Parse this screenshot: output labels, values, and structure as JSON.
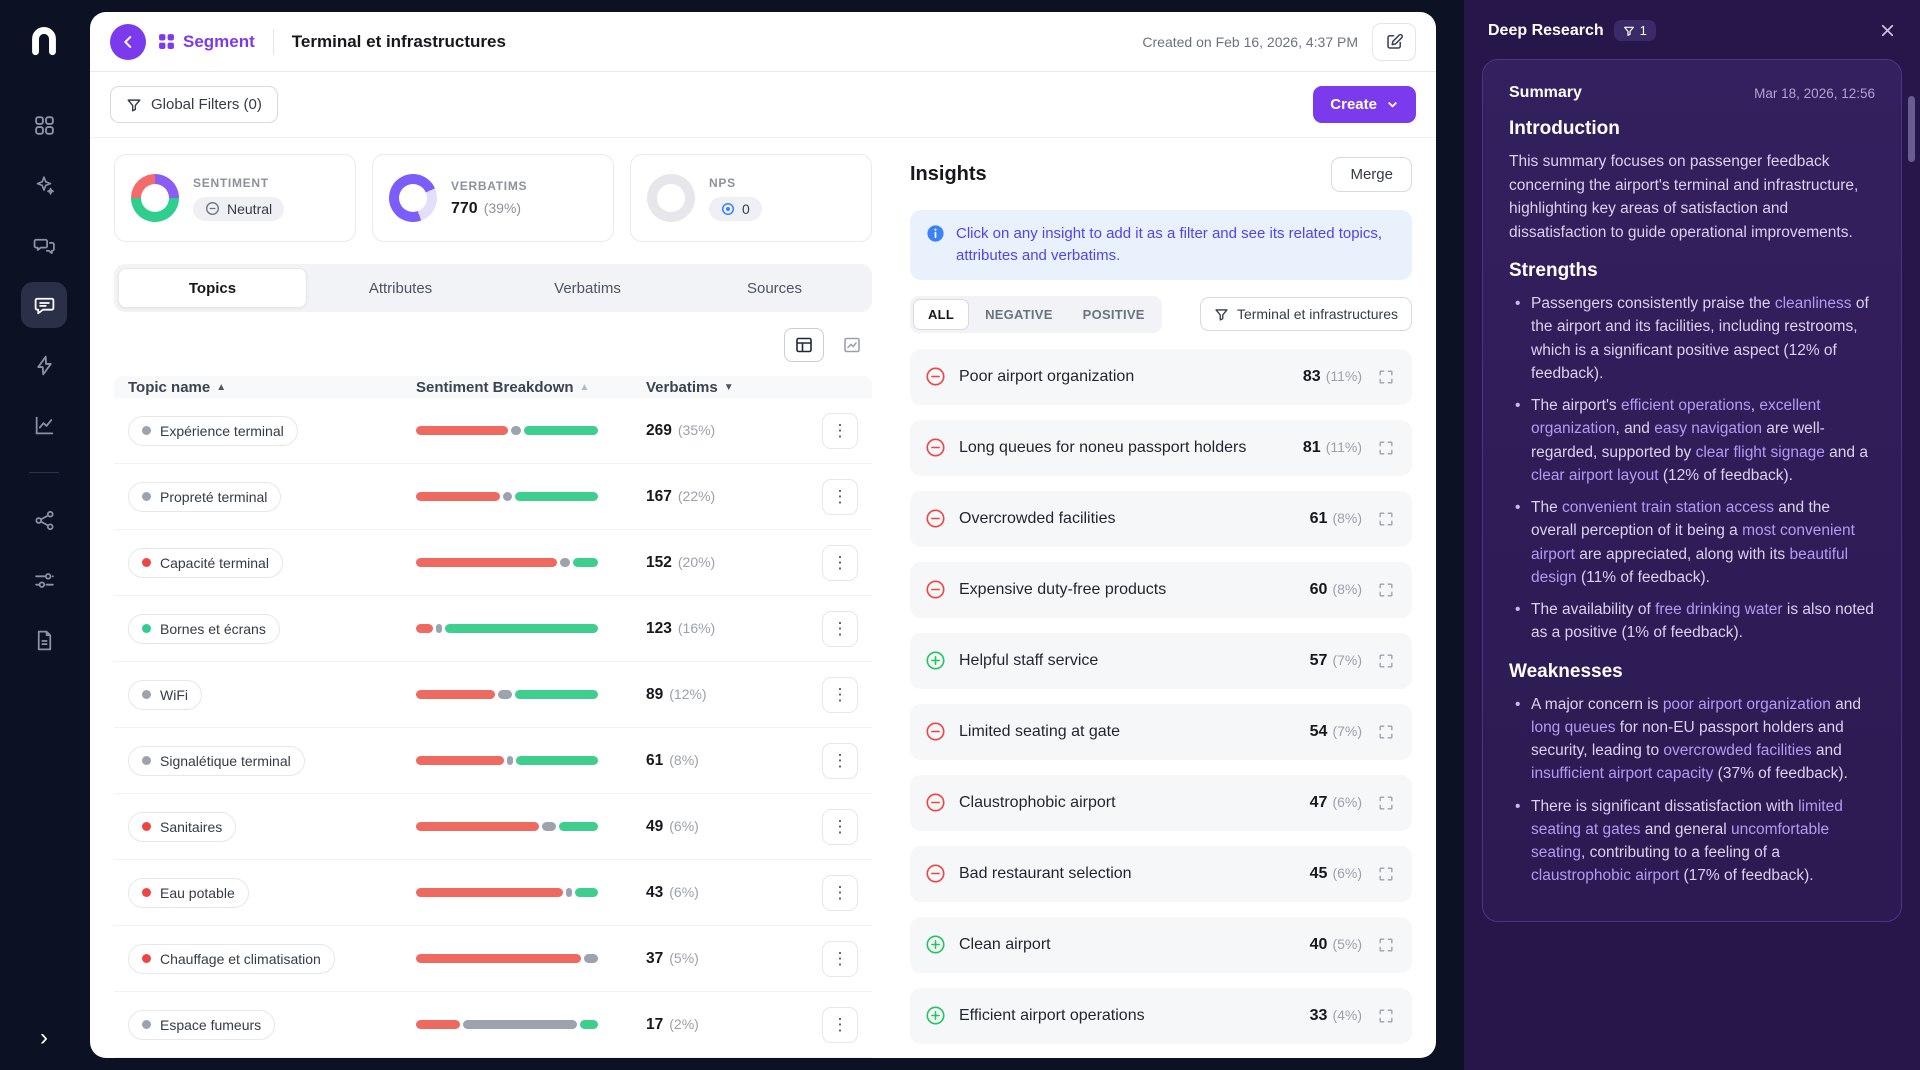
{
  "colors": {
    "accent": "#7c3aed",
    "negative": "#ee6a60",
    "neutral": "#9ca3af",
    "positive": "#3ecf8e",
    "insight_negative": "#ef4444",
    "insight_positive": "#22c55e",
    "highlight": "#b29bf4"
  },
  "header": {
    "segment_label": "Segment",
    "title": "Terminal et infrastructures",
    "created": "Created on Feb 16, 2026, 4:37 PM"
  },
  "toolbar": {
    "global_filters_label": "Global Filters (0)",
    "create_label": "Create"
  },
  "stats": {
    "sentiment": {
      "label": "SENTIMENT",
      "badge": "Neutral"
    },
    "verbatims": {
      "label": "VERBATIMS",
      "value": "770",
      "pct": "(39%)"
    },
    "nps": {
      "label": "NPS",
      "badge": "0"
    }
  },
  "tabs": [
    {
      "label": "Topics",
      "active": true
    },
    {
      "label": "Attributes",
      "active": false
    },
    {
      "label": "Verbatims",
      "active": false
    },
    {
      "label": "Sources",
      "active": false
    }
  ],
  "table": {
    "col_topic": "Topic name",
    "col_sentiment": "Sentiment Breakdown",
    "col_verbatims": "Verbatims",
    "rows": [
      {
        "name": "Expérience terminal",
        "dot": "#9ca3af",
        "count": "269",
        "pct": "(35%)",
        "neg": 52,
        "neu": 6,
        "pos": 42
      },
      {
        "name": "Propreté terminal",
        "dot": "#9ca3af",
        "count": "167",
        "pct": "(22%)",
        "neg": 48,
        "neu": 5,
        "pos": 47
      },
      {
        "name": "Capacité terminal",
        "dot": "#ef4444",
        "count": "152",
        "pct": "(20%)",
        "neg": 80,
        "neu": 6,
        "pos": 14
      },
      {
        "name": "Bornes et écrans",
        "dot": "#2fce8f",
        "count": "123",
        "pct": "(16%)",
        "neg": 10,
        "neu": 2,
        "pos": 88
      },
      {
        "name": "WiFi",
        "dot": "#9ca3af",
        "count": "89",
        "pct": "(12%)",
        "neg": 45,
        "neu": 8,
        "pos": 47
      },
      {
        "name": "Signalétique terminal",
        "dot": "#9ca3af",
        "count": "61",
        "pct": "(8%)",
        "neg": 50,
        "neu": 3,
        "pos": 47
      },
      {
        "name": "Sanitaires",
        "dot": "#ef4444",
        "count": "49",
        "pct": "(6%)",
        "neg": 70,
        "neu": 8,
        "pos": 22
      },
      {
        "name": "Eau potable",
        "dot": "#ef4444",
        "count": "43",
        "pct": "(6%)",
        "neg": 84,
        "neu": 3,
        "pos": 13
      },
      {
        "name": "Chauffage et climatisation",
        "dot": "#ef4444",
        "count": "37",
        "pct": "(5%)",
        "neg": 92,
        "neu": 8,
        "pos": 0
      },
      {
        "name": "Espace fumeurs",
        "dot": "#9ca3af",
        "count": "17",
        "pct": "(2%)",
        "neg": 25,
        "neu": 65,
        "pos": 10
      }
    ]
  },
  "insights": {
    "title": "Insights",
    "merge_label": "Merge",
    "banner": "Click on any insight to add it as a filter and see its related topics, attributes and verbatims.",
    "filters": [
      "ALL",
      "NEGATIVE",
      "POSITIVE"
    ],
    "active_filter": "ALL",
    "scope_chip": "Terminal et infrastructures",
    "items": [
      {
        "type": "negative",
        "label": "Poor airport organization",
        "count": "83",
        "pct": "(11%)"
      },
      {
        "type": "negative",
        "label": "Long queues for noneu passport holders",
        "count": "81",
        "pct": "(11%)"
      },
      {
        "type": "negative",
        "label": "Overcrowded facilities",
        "count": "61",
        "pct": "(8%)"
      },
      {
        "type": "negative",
        "label": "Expensive duty-free products",
        "count": "60",
        "pct": "(8%)"
      },
      {
        "type": "positive",
        "label": "Helpful staff service",
        "count": "57",
        "pct": "(7%)"
      },
      {
        "type": "negative",
        "label": "Limited seating at gate",
        "count": "54",
        "pct": "(7%)"
      },
      {
        "type": "negative",
        "label": "Claustrophobic airport",
        "count": "47",
        "pct": "(6%)"
      },
      {
        "type": "negative",
        "label": "Bad restaurant selection",
        "count": "45",
        "pct": "(6%)"
      },
      {
        "type": "positive",
        "label": "Clean airport",
        "count": "40",
        "pct": "(5%)"
      },
      {
        "type": "positive",
        "label": "Efficient airport operations",
        "count": "33",
        "pct": "(4%)"
      }
    ]
  },
  "research": {
    "title": "Deep Research",
    "badge": "1",
    "summary_title": "Summary",
    "date": "Mar 18, 2026, 12:56",
    "sections": [
      {
        "heading": "Introduction",
        "paragraphs": [
          [
            {
              "t": "This summary focuses on passenger feedback concerning the airport's terminal and infrastructure, highlighting key areas of satisfaction and dissatisfaction to guide operational improvements."
            }
          ]
        ]
      },
      {
        "heading": "Strengths",
        "bullets": [
          [
            {
              "t": "Passengers consistently praise the "
            },
            {
              "t": "cleanliness",
              "h": 1
            },
            {
              "t": " of the airport and its facilities, including restrooms, which is a significant positive aspect (12% of feedback)."
            }
          ],
          [
            {
              "t": "The airport's "
            },
            {
              "t": "efficient operations",
              "h": 1
            },
            {
              "t": ", "
            },
            {
              "t": "excellent organization",
              "h": 1
            },
            {
              "t": ", and "
            },
            {
              "t": "easy navigation",
              "h": 1
            },
            {
              "t": " are well-regarded, supported by "
            },
            {
              "t": "clear flight signage",
              "h": 1
            },
            {
              "t": " and a "
            },
            {
              "t": "clear airport layout",
              "h": 1
            },
            {
              "t": " (12% of feedback)."
            }
          ],
          [
            {
              "t": "The "
            },
            {
              "t": "convenient train station access",
              "h": 1
            },
            {
              "t": " and the overall perception of it being a "
            },
            {
              "t": "most convenient airport",
              "h": 1
            },
            {
              "t": " are appreciated, along with its "
            },
            {
              "t": "beautiful design",
              "h": 1
            },
            {
              "t": " (11% of feedback)."
            }
          ],
          [
            {
              "t": "The availability of "
            },
            {
              "t": "free drinking water",
              "h": 1
            },
            {
              "t": " is also noted as a positive (1% of feedback)."
            }
          ]
        ]
      },
      {
        "heading": "Weaknesses",
        "bullets": [
          [
            {
              "t": "A major concern is "
            },
            {
              "t": "poor airport organization",
              "h": 1
            },
            {
              "t": " and "
            },
            {
              "t": "long queues",
              "h": 1
            },
            {
              "t": " for non-EU passport holders and security, leading to "
            },
            {
              "t": "overcrowded facilities",
              "h": 1
            },
            {
              "t": " and "
            },
            {
              "t": "insufficient airport capacity",
              "h": 1
            },
            {
              "t": " (37% of feedback)."
            }
          ],
          [
            {
              "t": "There is significant dissatisfaction with "
            },
            {
              "t": "limited seating at gates",
              "h": 1
            },
            {
              "t": " and general "
            },
            {
              "t": "uncomfortable seating",
              "h": 1
            },
            {
              "t": ", contributing to a feeling of a "
            },
            {
              "t": "claustrophobic airport",
              "h": 1
            },
            {
              "t": " (17% of feedback)."
            }
          ]
        ]
      }
    ]
  }
}
